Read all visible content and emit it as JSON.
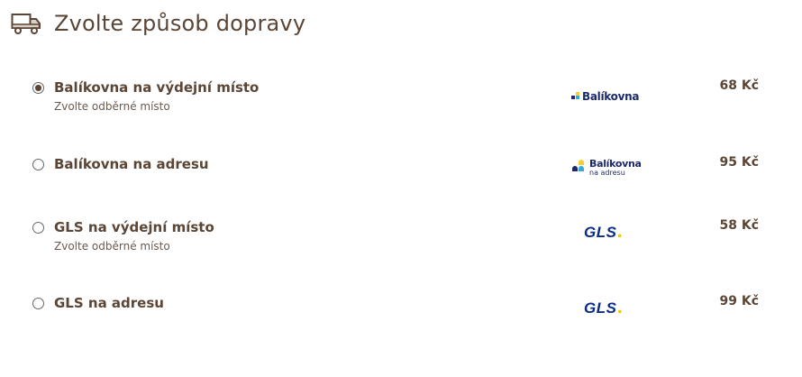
{
  "header": {
    "title": "Zvolte způsob dopravy",
    "icon": "truck-icon"
  },
  "options": [
    {
      "title": "Balíkovna na výdejní místo",
      "subtitle": "Zvolte odběrné místo",
      "logo": "Balíkovna",
      "price": "68 Kč",
      "selected": true
    },
    {
      "title": "Balíkovna na adresu",
      "subtitle": "",
      "logo": "Balíkovna",
      "logo_sub": "na adresu",
      "price": "95 Kč",
      "selected": false
    },
    {
      "title": "GLS na výdejní místo",
      "subtitle": "Zvolte odběrné místo",
      "logo": "GLS",
      "price": "58 Kč",
      "selected": false
    },
    {
      "title": "GLS na adresu",
      "subtitle": "",
      "logo": "GLS",
      "price": "99 Kč",
      "selected": false
    }
  ],
  "colors": {
    "text": "#5b4535",
    "balikovna_blue": "#1c2a6b",
    "balikovna_yellow": "#f5d130",
    "balikovna_cyan": "#3aa6dd",
    "gls_blue": "#0a2c8a",
    "gls_yellow": "#f5c400"
  }
}
